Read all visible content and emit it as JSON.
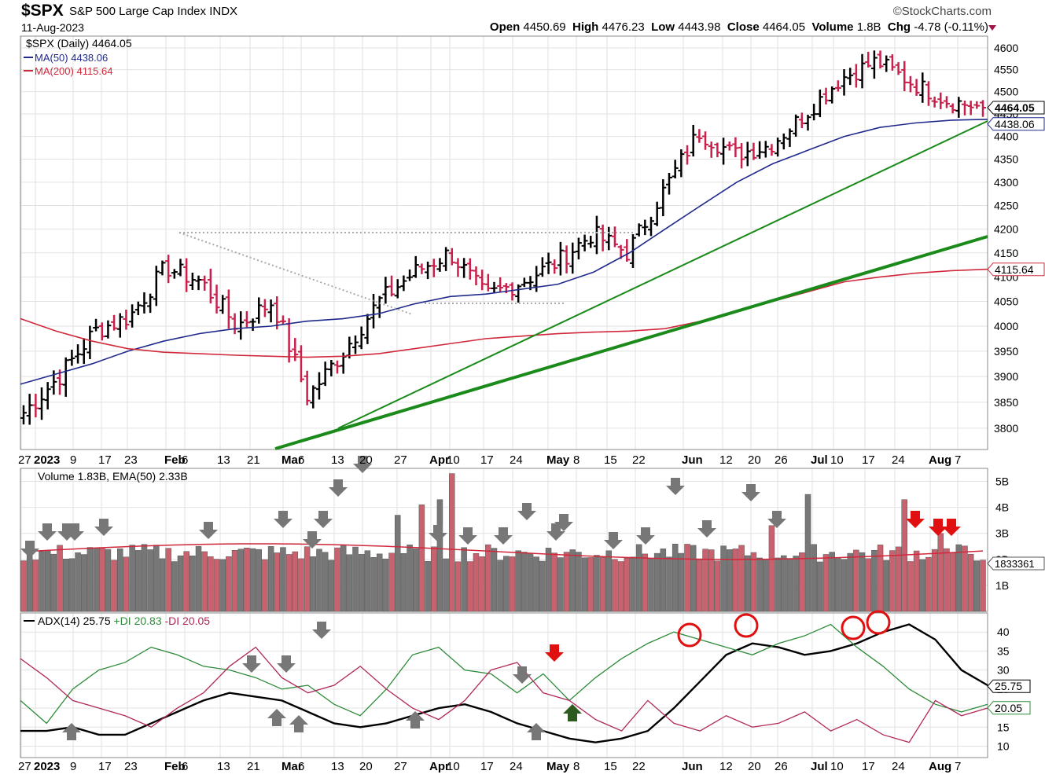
{
  "header": {
    "symbol": "$SPX",
    "description": "S&P 500 Large Cap Index",
    "exchange": "INDX",
    "date": "11-Aug-2023",
    "brand": "©StockCharts.com",
    "open_label": "Open",
    "open": "4450.69",
    "high_label": "High",
    "high": "4476.23",
    "low_label": "Low",
    "low": "4443.98",
    "close_label": "Close",
    "close": "4464.05",
    "volume_label": "Volume",
    "volume": "1.8B",
    "chg_label": "Chg",
    "chg": "-4.78 (-0.11%)"
  },
  "legend": {
    "price": "$SPX (Daily) 4464.05",
    "ma50": "MA(50) 4438.06",
    "ma200": "MA(200) 4115.64",
    "volume": "Volume 1.83B, EMA(50) 2.33B",
    "adx_a": "ADX(14) 25.75",
    "adx_b": "+DI 20.83",
    "adx_c": "-DI 20.05"
  },
  "colors": {
    "up": "#000000",
    "down": "#c8204a",
    "ma50": "#1f2a8c",
    "ma200": "#d0283a",
    "trend": "#1a8a1a",
    "vol_up": "#777777",
    "vol_down": "#c9626f",
    "plus_di": "#2e8b3a",
    "minus_di": "#b0285a",
    "adx": "#000000"
  },
  "chart_data": [
    {
      "type": "ohlc",
      "title": "$SPX (Daily) 4464.05",
      "x": [
        "2022-12-27",
        "2023-01-09",
        "2023-01-17",
        "2023-01-23",
        "2023-02-06",
        "2023-02-13",
        "2023-02-21",
        "2023-03-06",
        "2023-03-13",
        "2023-03-20",
        "2023-03-27",
        "2023-04-10",
        "2023-04-17",
        "2023-04-24",
        "2023-05-01",
        "2023-05-08",
        "2023-05-15",
        "2023-05-22",
        "2023-06-01",
        "2023-06-12",
        "2023-06-20",
        "2023-06-26",
        "2023-07-10",
        "2023-07-17",
        "2023-07-24",
        "2023-08-01",
        "2023-08-07",
        "2023-08-11"
      ],
      "close": [
        3830,
        3900,
        3990,
        4020,
        4120,
        4090,
        4000,
        4050,
        3860,
        3950,
        4050,
        4110,
        4150,
        4060,
        4090,
        4130,
        4190,
        4150,
        4280,
        4410,
        4360,
        4380,
        4450,
        4530,
        4570,
        4520,
        4480,
        4464
      ],
      "series": [
        {
          "name": "MA(50) 4438.06",
          "values": [
            3885,
            3905,
            3925,
            3950,
            3970,
            3985,
            3995,
            4000,
            4010,
            4015,
            4025,
            4045,
            4060,
            4065,
            4075,
            4085,
            4110,
            4150,
            4200,
            4250,
            4300,
            4340,
            4370,
            4400,
            4420,
            4430,
            4436,
            4438
          ]
        },
        {
          "name": "MA(200) 4115.64",
          "values": [
            4015,
            3990,
            3970,
            3955,
            3948,
            3945,
            3942,
            3940,
            3938,
            3940,
            3945,
            3955,
            3965,
            3975,
            3980,
            3985,
            3988,
            3990,
            3995,
            4010,
            4030,
            4050,
            4070,
            4090,
            4100,
            4108,
            4113,
            4116
          ]
        }
      ],
      "ylim": [
        3770,
        4620
      ],
      "yticks": [
        3800,
        3850,
        3900,
        3950,
        4000,
        4050,
        4100,
        4150,
        4200,
        4250,
        4300,
        4350,
        4400,
        4450,
        4500,
        4550,
        4600
      ],
      "xtick_labels": [
        "27",
        "2023",
        "9",
        "17",
        "23",
        "Feb",
        "6",
        "13",
        "21",
        "Mar",
        "6",
        "13",
        "20",
        "27",
        "Apr",
        "10",
        "17",
        "24",
        "May",
        "8",
        "15",
        "22",
        "Jun",
        "12",
        "20",
        "26",
        "Jul",
        "10",
        "17",
        "24",
        "Aug",
        "7"
      ],
      "price_tags": [
        "4464.05",
        "4438.06",
        "4115.64"
      ],
      "grid": true
    },
    {
      "type": "bar",
      "title": "Volume 1.83B, EMA(50) 2.33B",
      "ylim": [
        0,
        5.5
      ],
      "yticks": [
        "1B",
        "2B",
        "3B",
        "4B",
        "5B"
      ],
      "last_tag": "1833361",
      "grid": true
    },
    {
      "type": "line",
      "title": "ADX(14) 25.75 +DI 20.83 -DI 20.05",
      "ylim": [
        7,
        45
      ],
      "yticks": [
        10,
        15,
        20,
        25,
        30,
        35,
        40
      ],
      "tags": [
        "25.75",
        "20.05"
      ],
      "series": [
        {
          "name": "ADX(14) 25.75",
          "values": [
            14,
            14,
            15,
            13,
            13,
            16,
            19,
            22,
            24,
            23,
            22,
            19,
            16,
            15,
            16,
            18,
            20,
            21,
            19,
            16,
            14,
            12,
            11,
            12,
            14,
            20,
            27,
            34,
            37,
            36,
            34,
            35,
            37,
            40,
            42,
            38,
            30,
            26
          ]
        },
        {
          "name": "+DI 20.83",
          "values": [
            22,
            16,
            25,
            30,
            32,
            36,
            34,
            31,
            30,
            28,
            25,
            26,
            21,
            18,
            25,
            34,
            36,
            30,
            29,
            24,
            29,
            22,
            28,
            33,
            37,
            40,
            38,
            36,
            34,
            37,
            39,
            42,
            36,
            31,
            25,
            21,
            19,
            21
          ]
        },
        {
          "name": "-DI 20.05",
          "values": [
            33,
            28,
            22,
            20,
            18,
            15,
            20,
            24,
            31,
            36,
            28,
            24,
            26,
            31,
            25,
            20,
            17,
            22,
            30,
            32,
            24,
            22,
            17,
            14,
            22,
            16,
            14,
            18,
            15,
            16,
            19,
            14,
            17,
            13,
            11,
            22,
            18,
            20
          ]
        }
      ],
      "grid": true
    }
  ]
}
